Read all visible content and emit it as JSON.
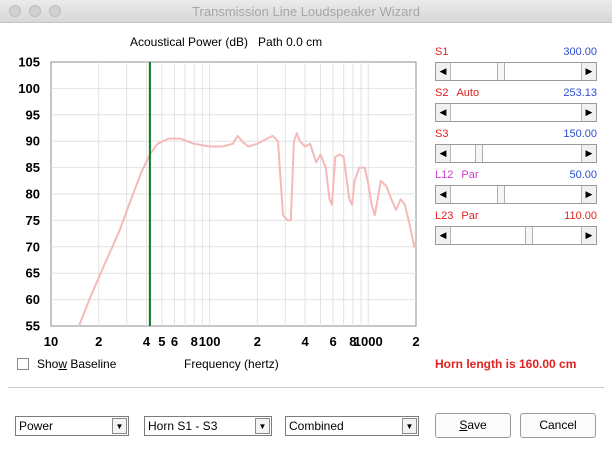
{
  "window": {
    "title": "Transmission Line Loudspeaker Wizard"
  },
  "chart_title": "Acoustical Power (dB)   Path 0.0 cm",
  "chart_data": {
    "type": "line",
    "title": "Acoustical Power (dB)   Path 0.0 cm",
    "xlabel": "Frequency (hertz)",
    "ylabel": "",
    "x_scale": "log",
    "xlim": [
      10,
      2000
    ],
    "ylim": [
      55,
      105
    ],
    "x_tick_labels": [
      "10",
      "2",
      "4",
      "5",
      "6",
      "8",
      "100",
      "2",
      "4",
      "6",
      "8",
      "1000",
      "2"
    ],
    "y_tick_labels": [
      "105",
      "100",
      "95",
      "90",
      "85",
      "80",
      "75",
      "70",
      "65",
      "60",
      "55"
    ],
    "y_ticks": [
      105,
      100,
      95,
      90,
      85,
      80,
      75,
      70,
      65,
      60,
      55
    ],
    "marker_x": 42,
    "marker_color": "#007a1a",
    "series": [
      {
        "color": "#f4baba",
        "points": [
          [
            15,
            55
          ],
          [
            18,
            61
          ],
          [
            22,
            67
          ],
          [
            27,
            73
          ],
          [
            32,
            79
          ],
          [
            37,
            84
          ],
          [
            42,
            87.5
          ],
          [
            47,
            89.5
          ],
          [
            55,
            90.5
          ],
          [
            65,
            90.5
          ],
          [
            80,
            89.5
          ],
          [
            100,
            89
          ],
          [
            120,
            89
          ],
          [
            140,
            89.5
          ],
          [
            150,
            91
          ],
          [
            160,
            90
          ],
          [
            175,
            89
          ],
          [
            200,
            89.5
          ],
          [
            230,
            90.5
          ],
          [
            250,
            91
          ],
          [
            270,
            90
          ],
          [
            290,
            76
          ],
          [
            310,
            75
          ],
          [
            325,
            75
          ],
          [
            340,
            90
          ],
          [
            355,
            91.5
          ],
          [
            370,
            90
          ],
          [
            400,
            89
          ],
          [
            430,
            89.5
          ],
          [
            470,
            86
          ],
          [
            500,
            87.5
          ],
          [
            540,
            85
          ],
          [
            570,
            79
          ],
          [
            590,
            78
          ],
          [
            620,
            87
          ],
          [
            660,
            87.5
          ],
          [
            700,
            87
          ],
          [
            760,
            79
          ],
          [
            790,
            78
          ],
          [
            820,
            82.5
          ],
          [
            880,
            85
          ],
          [
            950,
            85
          ],
          [
            1000,
            82
          ],
          [
            1050,
            78
          ],
          [
            1100,
            76
          ],
          [
            1200,
            82.5
          ],
          [
            1300,
            81.5
          ],
          [
            1400,
            79
          ],
          [
            1500,
            77
          ],
          [
            1600,
            79
          ],
          [
            1700,
            78
          ],
          [
            1800,
            75
          ],
          [
            1950,
            70
          ],
          [
            2000,
            71
          ]
        ]
      }
    ]
  },
  "sliders": [
    {
      "label": "S1",
      "mode": "",
      "value": "300.00",
      "label_color": "#e0221e",
      "value_color": "#2e4fd0",
      "position": 0.38
    },
    {
      "label": "S2",
      "mode": "Auto",
      "value": "253.13",
      "label_color": "#e0221e",
      "value_color": "#2e4fd0",
      "position": null
    },
    {
      "label": "S3",
      "mode": "",
      "value": "150.00",
      "label_color": "#e0221e",
      "value_color": "#2e4fd0",
      "position": 0.2
    },
    {
      "label": "L12",
      "mode": "Par",
      "value": "50.00",
      "label_color": "#d23ad2",
      "value_color": "#2e4fd0",
      "position": 0.38
    },
    {
      "label": "L23",
      "mode": "Par",
      "value": "110.00",
      "label_color": "#e0221e",
      "value_color": "#e0221e",
      "position": 0.61
    }
  ],
  "show_baseline": {
    "label": "Show Baseline",
    "mnemonic": "w",
    "checked": false
  },
  "horn_length": "Horn length is 160.00 cm",
  "footer": {
    "dropdowns": [
      "Power",
      "Horn S1 - S3",
      "Combined"
    ],
    "save_label": "Save",
    "save_mnemonic": "S",
    "cancel_label": "Cancel"
  }
}
